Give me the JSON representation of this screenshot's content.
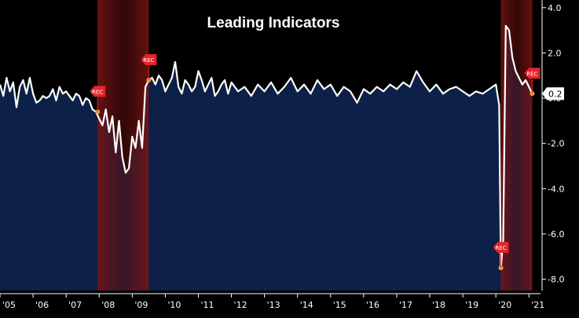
{
  "chart_data": {
    "type": "area",
    "title": "Leading Indicators",
    "last_value_label": "0.2",
    "ylim": [
      -8.5,
      4.2
    ],
    "xlim": [
      2005.0,
      2021.35
    ],
    "y_ticks": [
      4.0,
      2.0,
      0.0,
      -2.0,
      -4.0,
      -6.0,
      -8.0
    ],
    "y_tick_labels": [
      "4.0",
      "2.0",
      "0.0",
      "-2.0",
      "-4.0",
      "-6.0",
      "-8.0"
    ],
    "x_tick_labels": [
      "'05",
      "'06",
      "'07",
      "'08",
      "'09",
      "'10",
      "'11",
      "'12",
      "'13",
      "'14",
      "'15",
      "'16",
      "'17",
      "'18",
      "'19",
      "'20",
      "'21"
    ],
    "x_tick_years": [
      2005,
      2006,
      2007,
      2008,
      2009,
      2010,
      2011,
      2012,
      2013,
      2014,
      2015,
      2016,
      2017,
      2018,
      2019,
      2020,
      2021
    ],
    "recessions": [
      {
        "start": 2007.95,
        "end": 2009.5,
        "start_label": "REC",
        "end_label": "REC"
      },
      {
        "start": 2020.15,
        "end": 2021.1,
        "start_label": "REC",
        "end_label": "REC"
      }
    ],
    "colors": {
      "fill": "#0d2148",
      "line": "#ffffff",
      "recession": "#8b1c1c",
      "marker": "#e8a030",
      "flag": "#e3242b"
    },
    "series": [
      {
        "x": [
          2005.0,
          2005.1,
          2005.2,
          2005.3,
          2005.4,
          2005.5,
          2005.6,
          2005.7,
          2005.8,
          2005.9,
          2006.0,
          2006.1,
          2006.2,
          2006.3,
          2006.4,
          2006.5,
          2006.6,
          2006.7,
          2006.8,
          2006.9,
          2007.0,
          2007.1,
          2007.2,
          2007.3,
          2007.4,
          2007.5,
          2007.6,
          2007.7,
          2007.8,
          2007.9,
          2008.0,
          2008.1,
          2008.2,
          2008.3,
          2008.4,
          2008.5,
          2008.6,
          2008.7,
          2008.8,
          2008.9,
          2009.0,
          2009.1,
          2009.2,
          2009.3,
          2009.4,
          2009.5,
          2009.6,
          2009.7,
          2009.8,
          2009.9,
          2010.0,
          2010.1,
          2010.2,
          2010.3,
          2010.4,
          2010.5,
          2010.6,
          2010.7,
          2010.8,
          2010.9,
          2011.0,
          2011.1,
          2011.2,
          2011.3,
          2011.4,
          2011.5,
          2011.6,
          2011.7,
          2011.8,
          2011.9,
          2012.0,
          2012.2,
          2012.4,
          2012.6,
          2012.8,
          2013.0,
          2013.2,
          2013.4,
          2013.6,
          2013.8,
          2014.0,
          2014.2,
          2014.4,
          2014.6,
          2014.8,
          2015.0,
          2015.2,
          2015.4,
          2015.6,
          2015.8,
          2016.0,
          2016.2,
          2016.4,
          2016.6,
          2016.8,
          2017.0,
          2017.2,
          2017.4,
          2017.6,
          2017.8,
          2018.0,
          2018.2,
          2018.4,
          2018.6,
          2018.8,
          2019.0,
          2019.2,
          2019.4,
          2019.6,
          2019.8,
          2020.0,
          2020.1,
          2020.15,
          2020.22,
          2020.3,
          2020.4,
          2020.5,
          2020.6,
          2020.7,
          2020.8,
          2020.9,
          2021.0,
          2021.1
        ],
        "y": [
          0.6,
          0.1,
          0.9,
          0.3,
          0.7,
          -0.4,
          0.5,
          0.8,
          0.2,
          0.9,
          0.2,
          -0.2,
          -0.1,
          0.1,
          0.0,
          0.1,
          0.4,
          -0.1,
          0.5,
          0.2,
          0.3,
          0.1,
          -0.1,
          0.2,
          0.1,
          -0.3,
          0.0,
          -0.1,
          -0.5,
          -0.6,
          -0.9,
          -1.2,
          -0.5,
          -1.5,
          -0.8,
          -2.4,
          -1.0,
          -2.6,
          -3.3,
          -3.1,
          -1.7,
          -2.2,
          -1.0,
          -2.2,
          0.5,
          0.8,
          0.9,
          0.6,
          1.0,
          0.8,
          0.3,
          0.6,
          0.9,
          1.6,
          0.5,
          0.2,
          0.8,
          0.6,
          0.3,
          0.5,
          1.2,
          0.8,
          0.3,
          0.6,
          0.9,
          0.1,
          0.3,
          0.6,
          0.8,
          0.2,
          0.7,
          0.3,
          0.5,
          0.1,
          0.6,
          0.3,
          0.7,
          0.2,
          0.5,
          0.9,
          0.3,
          0.6,
          0.2,
          0.8,
          0.4,
          0.6,
          0.1,
          0.5,
          0.3,
          -0.2,
          0.4,
          0.2,
          0.5,
          0.3,
          0.6,
          0.4,
          0.7,
          0.5,
          1.2,
          0.7,
          0.3,
          0.6,
          0.2,
          0.4,
          0.5,
          0.3,
          0.1,
          0.3,
          0.2,
          0.4,
          0.6,
          -0.3,
          -7.5,
          -6.3,
          3.2,
          3.0,
          1.8,
          1.2,
          0.9,
          0.6,
          0.8,
          0.5,
          0.2
        ]
      }
    ]
  }
}
